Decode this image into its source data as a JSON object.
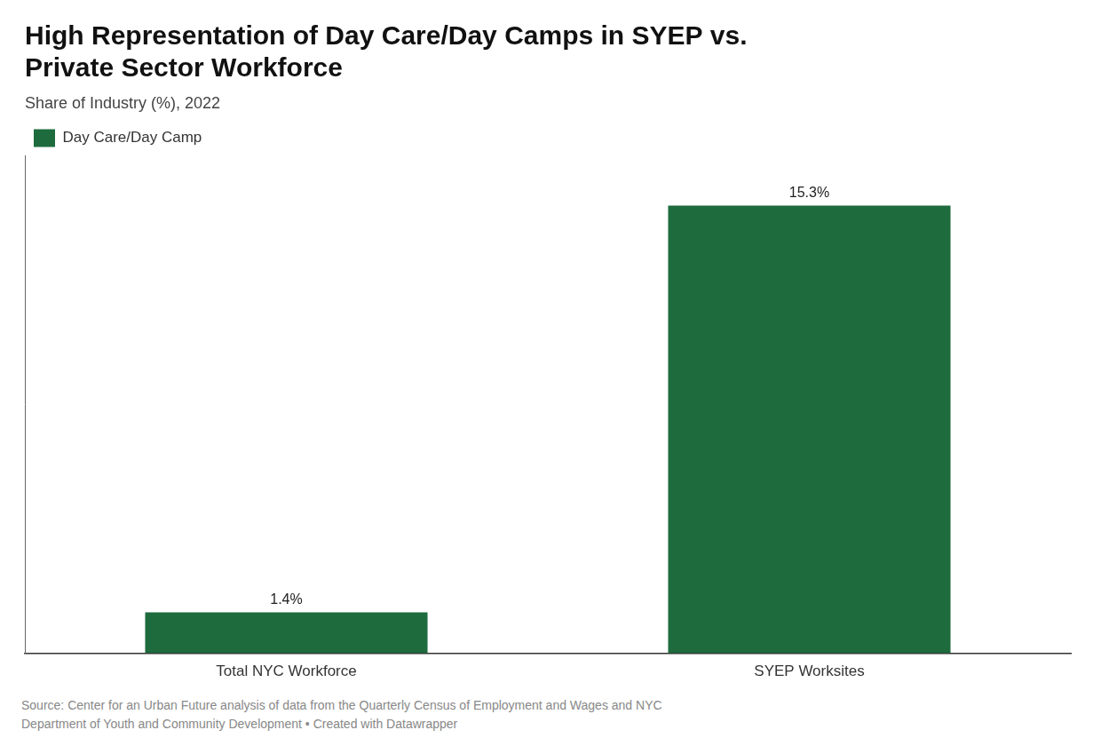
{
  "chart_data": {
    "type": "bar",
    "title": "High Representation of Day Care/Day Camps in SYEP vs.\nPrivate Sector Workforce",
    "subtitle": "Share of Industry (%), 2022",
    "categories": [
      "Total NYC Workforce",
      "SYEP Worksites"
    ],
    "series": [
      {
        "name": "Day Care/Day Camp",
        "color": "#1e6b3e",
        "values": [
          1.4,
          15.3
        ],
        "value_labels": [
          "1.4%",
          "15.3%"
        ]
      }
    ],
    "ylim": [
      0,
      17
    ],
    "grid": false,
    "legend": "top-left",
    "data_labels": true,
    "tick_labels": "x",
    "source": "Source: Center for an Urban Future analysis of data from the Quarterly Census of Employment and Wages and NYC\nDepartment of Youth and Community Development • Created with Datawrapper"
  }
}
